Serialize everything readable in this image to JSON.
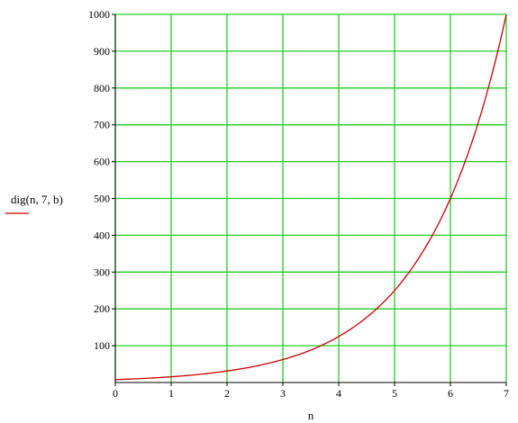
{
  "chart_data": {
    "type": "line",
    "title": "",
    "xlabel": "n",
    "ylabel": "",
    "xlim": [
      0,
      7
    ],
    "ylim": [
      0,
      1000
    ],
    "x_ticks": [
      "0",
      "1",
      "2",
      "3",
      "4",
      "5",
      "6",
      "7"
    ],
    "y_ticks": [
      "100",
      "200",
      "300",
      "400",
      "500",
      "600",
      "700",
      "800",
      "900",
      "1000"
    ],
    "grid": true,
    "legend_position": "left",
    "series": [
      {
        "name": "dig(n, 7, b)",
        "color": "#cc0000",
        "x": [
          0,
          0.5,
          1,
          1.5,
          2,
          2.5,
          3,
          3.5,
          4,
          4.5,
          5,
          5.5,
          6,
          6.25,
          6.5,
          6.75,
          7
        ],
        "y": [
          7.8,
          11,
          15.6,
          22,
          31.3,
          44,
          62.5,
          88,
          125,
          177,
          250,
          354,
          500,
          595,
          707,
          841,
          1000
        ]
      }
    ]
  },
  "colors": {
    "grid": "#22cc22",
    "axis": "#000000",
    "background": "#ffffff"
  }
}
